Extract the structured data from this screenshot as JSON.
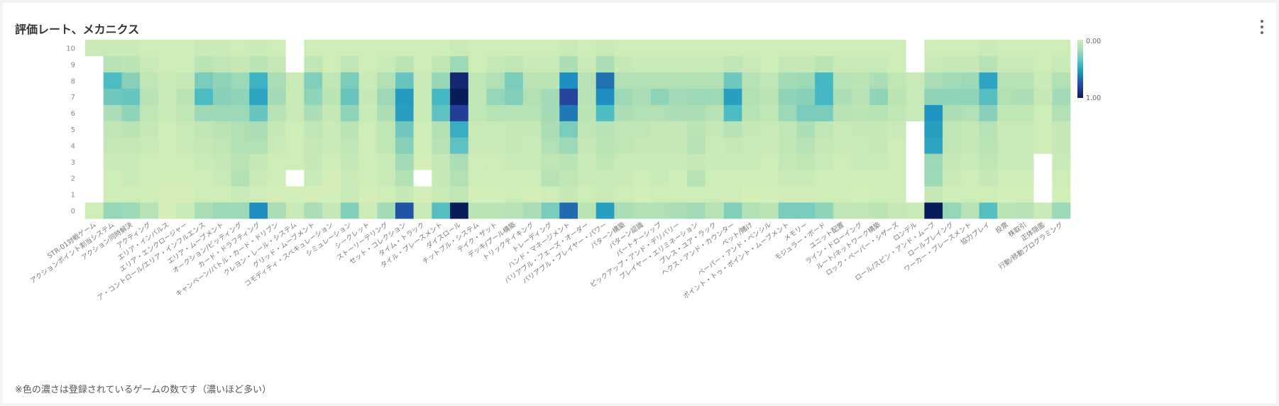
{
  "card": {
    "title": "評価レート、メカニクス",
    "menu_icon": "more-vert-icon",
    "footnote": "※色の濃さは登録されているゲームの数です（濃いほど多い）"
  },
  "colors": {
    "scale": [
      "#d3eeb6",
      "#b1e0b5",
      "#7fcdbb",
      "#41b6c4",
      "#1d91c0",
      "#225ea8",
      "#253494",
      "#081d58"
    ],
    "missing": "#ffffff"
  },
  "chart_data": {
    "type": "heatmap",
    "title": "評価レート、メカニクス",
    "xlabel": "",
    "ylabel": "",
    "y_categories": [
      "0",
      "1",
      "2",
      "3",
      "4",
      "5",
      "6",
      "7",
      "8",
      "9",
      "10"
    ],
    "x_categories": [
      "STR-01対戦ゲーム",
      "アクションポイント割当システム",
      "アクション同時解決",
      "アクティング",
      "エリア・インパルス",
      "エリア・エンクロージャー",
      "ア・コントロール/エリア・インフルエンス",
      "エリア・ムーブメント",
      "オークション/ビッティング",
      "カード・ドラフティング",
      "キャンペーン/バトル・カード・ドリブン",
      "クレヨン・レール・システム",
      "グリッド・ムーブメント",
      "コモディティ・スペキュレーション",
      "シミュレーション",
      "シークレット",
      "ストーリーテリング",
      "セット・コレクション",
      "タイム・トラック",
      "タイル・プレースメント",
      "ダイスロール",
      "チットプル・システム",
      "テイク・ザット",
      "デッキ/プール構築",
      "トリックテイキング",
      "トレーディング",
      "ハンド・マネージメント",
      "バリアブル・フェーズ・オーダー",
      "バリアブル・プレイヤー・パワー",
      "パターン構築",
      "パターン認識",
      "パートナーシップ",
      "ピックアップ・アンド・デリバリー",
      "プレイヤー・エリミネーション",
      "プレス・ユア・ラック",
      "ヘクス・アンド・カウンター",
      "ベット/賭け",
      "ペーパー・アンド・ペンシル",
      "ポイント・トゥ・ポイント・ムーブメント",
      "メモリー",
      "モジュラー・ボード",
      "ユニット配置",
      "ライン・ドローイング",
      "ルート/ネットワーク構築",
      "ロック・ペーパー・シザーズ",
      "ロンデル",
      "ロール/スピン・アンド・ムーブ",
      "ロールプレイング",
      "ワーカー・プレースメント",
      "協力プレイ",
      "投票",
      "株取引",
      "正体隠匿",
      "行動/移動プログラミング"
    ],
    "values": [
      [
        0.02,
        0.22,
        0.2,
        0.12,
        0.0,
        0.04,
        0.16,
        0.2,
        0.2,
        0.58,
        0.16,
        0.04,
        0.16,
        0.06,
        0.28,
        0.03,
        0.18,
        0.75,
        0.04,
        0.38,
        1.0,
        0.1,
        0.1,
        0.12,
        0.16,
        0.3,
        0.68,
        0.1,
        0.52,
        0.16,
        0.14,
        0.14,
        0.16,
        0.18,
        0.12,
        0.28,
        0.14,
        0.1,
        0.3,
        0.3,
        0.24,
        0.08,
        0.08,
        0.1,
        0.06,
        0.04,
        1.0,
        0.22,
        0.12,
        0.38,
        0.1,
        0.12,
        0.04,
        0.2
      ],
      [
        null,
        0.02,
        0.02,
        0.01,
        0.0,
        0.0,
        0.02,
        0.02,
        0.04,
        0.02,
        0.0,
        0.0,
        0.0,
        0.0,
        0.04,
        0.0,
        0.02,
        0.06,
        0.0,
        0.04,
        0.08,
        0.0,
        0.0,
        0.02,
        0.0,
        0.02,
        0.06,
        0.02,
        0.04,
        0.02,
        0.0,
        0.02,
        0.02,
        0.02,
        0.02,
        0.02,
        0.0,
        0.0,
        0.02,
        0.02,
        0.02,
        0.02,
        0.0,
        0.02,
        0.02,
        null,
        0.06,
        0.02,
        0.02,
        0.02,
        0.0,
        0.0,
        null,
        0.0
      ],
      [
        null,
        0.02,
        0.04,
        0.02,
        0.01,
        0.01,
        0.02,
        0.04,
        0.14,
        0.04,
        0.02,
        null,
        0.04,
        0.0,
        0.04,
        0.02,
        0.04,
        0.14,
        null,
        0.06,
        0.14,
        0.02,
        0.02,
        0.02,
        0.02,
        0.12,
        0.08,
        0.04,
        0.04,
        0.04,
        0.02,
        0.04,
        0.02,
        0.12,
        0.02,
        0.02,
        0.02,
        0.02,
        0.04,
        0.04,
        0.02,
        0.02,
        0.02,
        0.02,
        0.02,
        null,
        0.2,
        0.04,
        0.02,
        0.06,
        0.02,
        0.02,
        null,
        0.02
      ],
      [
        null,
        0.04,
        0.04,
        0.02,
        0.02,
        0.02,
        0.04,
        0.06,
        0.1,
        0.06,
        0.02,
        0.02,
        0.06,
        0.02,
        0.06,
        0.02,
        0.04,
        0.18,
        0.0,
        0.06,
        0.16,
        0.02,
        0.02,
        0.04,
        0.04,
        0.08,
        0.1,
        0.04,
        0.08,
        0.04,
        0.04,
        0.04,
        0.04,
        0.06,
        0.04,
        0.04,
        0.04,
        0.02,
        0.06,
        0.08,
        0.04,
        0.02,
        0.04,
        0.04,
        0.02,
        null,
        0.2,
        0.06,
        0.04,
        0.08,
        0.04,
        0.04,
        null,
        0.04
      ],
      [
        null,
        0.06,
        0.06,
        0.04,
        0.02,
        0.04,
        0.06,
        0.08,
        0.14,
        0.14,
        0.04,
        0.02,
        0.06,
        0.04,
        0.08,
        0.02,
        0.08,
        0.26,
        0.02,
        0.12,
        0.36,
        0.04,
        0.04,
        0.06,
        0.04,
        0.14,
        0.2,
        0.06,
        0.1,
        0.08,
        0.06,
        0.06,
        0.06,
        0.12,
        0.04,
        0.06,
        0.04,
        0.04,
        0.08,
        0.12,
        0.06,
        0.04,
        0.04,
        0.06,
        0.02,
        null,
        0.5,
        0.08,
        0.06,
        0.1,
        0.04,
        0.04,
        0.02,
        0.06
      ],
      [
        null,
        0.08,
        0.1,
        0.06,
        0.02,
        0.04,
        0.08,
        0.1,
        0.14,
        0.16,
        0.06,
        0.02,
        0.08,
        0.04,
        0.1,
        0.02,
        0.08,
        0.32,
        0.02,
        0.14,
        0.46,
        0.04,
        0.04,
        0.06,
        0.06,
        0.16,
        0.3,
        0.08,
        0.12,
        0.08,
        0.08,
        0.06,
        0.06,
        0.1,
        0.06,
        0.12,
        0.06,
        0.04,
        0.08,
        0.16,
        0.08,
        0.04,
        0.06,
        0.06,
        0.04,
        null,
        0.52,
        0.08,
        0.06,
        0.12,
        0.04,
        0.04,
        0.02,
        0.06
      ],
      [
        null,
        0.16,
        0.24,
        0.08,
        0.04,
        0.08,
        0.2,
        0.2,
        0.2,
        0.34,
        0.12,
        0.04,
        0.16,
        0.06,
        0.24,
        0.04,
        0.16,
        0.52,
        0.04,
        0.36,
        0.82,
        0.08,
        0.12,
        0.12,
        0.12,
        0.18,
        0.64,
        0.1,
        0.4,
        0.16,
        0.14,
        0.14,
        0.16,
        0.16,
        0.12,
        0.4,
        0.12,
        0.08,
        0.2,
        0.3,
        0.3,
        0.12,
        0.1,
        0.12,
        0.08,
        0.04,
        0.56,
        0.16,
        0.14,
        0.26,
        0.08,
        0.08,
        0.02,
        0.14
      ],
      [
        null,
        0.32,
        0.34,
        0.12,
        0.04,
        0.1,
        0.4,
        0.26,
        0.24,
        0.5,
        0.18,
        0.04,
        0.24,
        0.1,
        0.34,
        0.06,
        0.2,
        0.54,
        0.04,
        0.42,
        1.0,
        0.08,
        0.22,
        0.28,
        0.14,
        0.18,
        0.8,
        0.12,
        0.58,
        0.2,
        0.16,
        0.24,
        0.18,
        0.2,
        0.2,
        0.52,
        0.14,
        0.1,
        0.24,
        0.26,
        0.42,
        0.16,
        0.12,
        0.24,
        0.1,
        0.04,
        0.24,
        0.24,
        0.24,
        0.38,
        0.14,
        0.16,
        0.06,
        0.18
      ],
      [
        null,
        0.4,
        0.26,
        0.08,
        0.04,
        0.06,
        0.3,
        0.24,
        0.2,
        0.44,
        0.16,
        0.04,
        0.28,
        0.08,
        0.3,
        0.04,
        0.14,
        0.34,
        0.04,
        0.22,
        0.94,
        0.08,
        0.14,
        0.3,
        0.1,
        0.1,
        0.58,
        0.12,
        0.66,
        0.14,
        0.14,
        0.14,
        0.14,
        0.14,
        0.14,
        0.32,
        0.12,
        0.08,
        0.18,
        0.2,
        0.42,
        0.12,
        0.1,
        0.16,
        0.08,
        0.04,
        0.16,
        0.18,
        0.2,
        0.5,
        0.12,
        0.12,
        0.04,
        0.14
      ],
      [
        null,
        0.12,
        0.1,
        0.04,
        0.02,
        0.02,
        0.1,
        0.08,
        0.06,
        0.1,
        0.06,
        null,
        0.08,
        0.02,
        0.08,
        0.02,
        0.04,
        0.1,
        0.02,
        0.08,
        0.2,
        0.02,
        0.06,
        0.08,
        0.04,
        0.04,
        0.16,
        0.04,
        0.16,
        0.06,
        0.04,
        0.04,
        0.04,
        0.04,
        0.04,
        0.08,
        0.04,
        0.02,
        0.06,
        0.06,
        0.1,
        0.04,
        0.04,
        0.04,
        0.02,
        null,
        0.04,
        0.06,
        0.06,
        0.12,
        0.04,
        0.04,
        0.02,
        0.04
      ],
      [
        0.04,
        0.04,
        0.04,
        0.02,
        0.02,
        0.02,
        0.04,
        0.04,
        0.02,
        0.04,
        0.02,
        null,
        0.02,
        0.02,
        0.02,
        0.02,
        0.02,
        0.02,
        0.02,
        0.02,
        0.04,
        0.02,
        0.02,
        0.02,
        0.02,
        0.02,
        0.04,
        0.02,
        0.04,
        0.02,
        0.02,
        0.02,
        0.02,
        0.02,
        0.02,
        0.02,
        0.02,
        0.02,
        0.02,
        0.02,
        0.02,
        0.02,
        0.02,
        0.02,
        0.02,
        null,
        0.02,
        0.02,
        0.02,
        0.04,
        0.02,
        0.02,
        0.02,
        0.02
      ]
    ],
    "color_range": [
      0,
      1
    ],
    "legend": {
      "position": "right",
      "min_label": "0.00",
      "max_label": "1.00"
    }
  }
}
